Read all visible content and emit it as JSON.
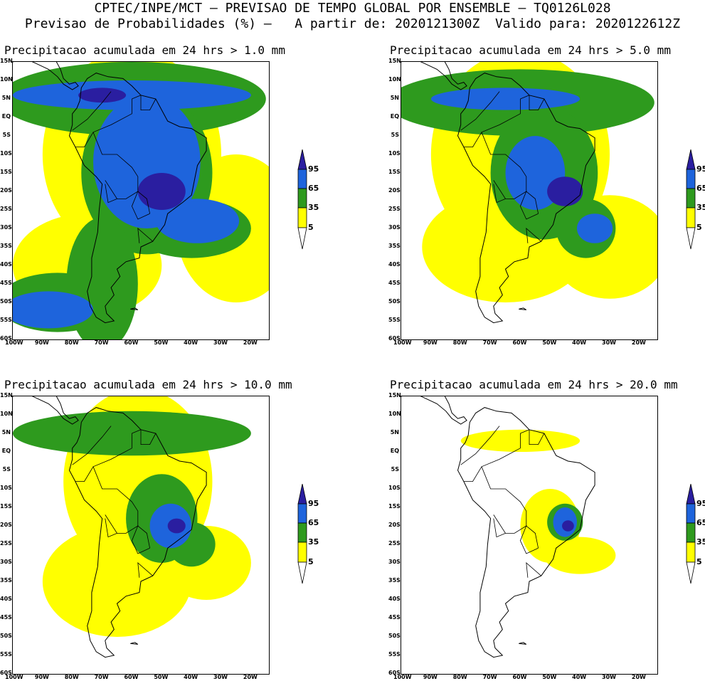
{
  "header": {
    "line1": "CPTEC/INPE/MCT – PREVISAO DE TEMPO GLOBAL POR ENSEMBLE – TQ0126L028",
    "line2": "Previsao de Probabilidades (%) –   A partir de: 2020121300Z  Valido para: 2020122612Z"
  },
  "panels": [
    {
      "title": "Precipitacao acumulada em 24 hrs > 1.0 mm"
    },
    {
      "title": "Precipitacao acumulada em 24 hrs > 5.0 mm"
    },
    {
      "title": "Precipitacao acumulada em 24 hrs > 10.0 mm"
    },
    {
      "title": "Precipitacao acumulada em 24 hrs > 20.0 mm"
    }
  ],
  "lat_labels": [
    "15N",
    "10N",
    "5N",
    "EQ",
    "5S",
    "10S",
    "15S",
    "20S",
    "25S",
    "30S",
    "35S",
    "40S",
    "45S",
    "50S",
    "55S",
    "60S"
  ],
  "lon_labels": [
    "100W",
    "90W",
    "80W",
    "70W",
    "60W",
    "50W",
    "40W",
    "30W",
    "20W"
  ],
  "legend": {
    "labels": [
      "95",
      "65",
      "35",
      "5"
    ],
    "colors": {
      "yellow": "#ffff00",
      "green": "#2e9a1e",
      "blue": "#1e64dc",
      "darkblue": "#2a1ea0"
    }
  }
}
